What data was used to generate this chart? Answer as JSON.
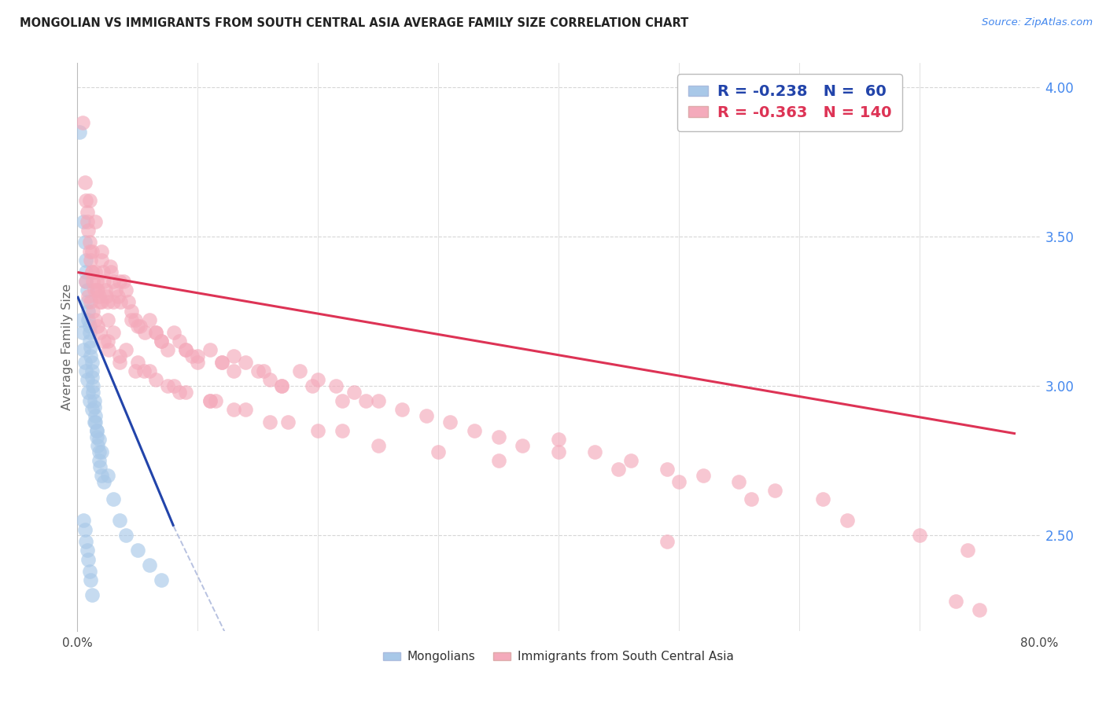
{
  "title": "MONGOLIAN VS IMMIGRANTS FROM SOUTH CENTRAL ASIA AVERAGE FAMILY SIZE CORRELATION CHART",
  "source": "Source: ZipAtlas.com",
  "ylabel": "Average Family Size",
  "xlim": [
    0.0,
    0.8
  ],
  "ylim": [
    2.18,
    4.08
  ],
  "right_yticks": [
    2.5,
    3.0,
    3.5,
    4.0
  ],
  "legend_label1": "Mongolians",
  "legend_label2": "Immigrants from South Central Asia",
  "blue_scatter_color": "#A8C8E8",
  "pink_scatter_color": "#F4AABB",
  "blue_line_color": "#2244AA",
  "pink_line_color": "#DD3355",
  "background_color": "#FFFFFF",
  "grid_color": "#CCCCCC",
  "title_color": "#222222",
  "right_axis_color": "#4488EE",
  "mongolian_R": -0.238,
  "mongolian_N": 60,
  "sca_R": -0.363,
  "sca_N": 140,
  "blue_reg": [
    0.0,
    3.3,
    0.08,
    2.53
  ],
  "blue_dash": [
    0.08,
    2.53,
    0.42,
    -0.3
  ],
  "pink_reg": [
    0.0,
    3.38,
    0.78,
    2.84
  ],
  "mongolian_x": [
    0.002,
    0.005,
    0.006,
    0.007,
    0.007,
    0.007,
    0.008,
    0.008,
    0.009,
    0.009,
    0.01,
    0.01,
    0.01,
    0.011,
    0.011,
    0.012,
    0.012,
    0.012,
    0.013,
    0.013,
    0.014,
    0.014,
    0.015,
    0.015,
    0.016,
    0.016,
    0.017,
    0.018,
    0.018,
    0.019,
    0.02,
    0.022,
    0.003,
    0.004,
    0.005,
    0.006,
    0.007,
    0.008,
    0.009,
    0.01,
    0.012,
    0.014,
    0.016,
    0.018,
    0.02,
    0.025,
    0.03,
    0.035,
    0.04,
    0.05,
    0.06,
    0.07,
    0.005,
    0.006,
    0.007,
    0.008,
    0.009,
    0.01,
    0.011,
    0.012
  ],
  "mongolian_y": [
    3.85,
    3.55,
    3.48,
    3.42,
    3.38,
    3.35,
    3.32,
    3.28,
    3.25,
    3.22,
    3.2,
    3.18,
    3.15,
    3.13,
    3.1,
    3.08,
    3.05,
    3.03,
    3.0,
    2.98,
    2.95,
    2.93,
    2.9,
    2.88,
    2.85,
    2.83,
    2.8,
    2.78,
    2.75,
    2.73,
    2.7,
    2.68,
    3.22,
    3.18,
    3.12,
    3.08,
    3.05,
    3.02,
    2.98,
    2.95,
    2.92,
    2.88,
    2.85,
    2.82,
    2.78,
    2.7,
    2.62,
    2.55,
    2.5,
    2.45,
    2.4,
    2.35,
    2.55,
    2.52,
    2.48,
    2.45,
    2.42,
    2.38,
    2.35,
    2.3
  ],
  "sca_x": [
    0.004,
    0.006,
    0.007,
    0.008,
    0.009,
    0.01,
    0.01,
    0.011,
    0.012,
    0.012,
    0.013,
    0.014,
    0.015,
    0.015,
    0.016,
    0.017,
    0.018,
    0.019,
    0.02,
    0.021,
    0.022,
    0.023,
    0.024,
    0.025,
    0.027,
    0.028,
    0.03,
    0.032,
    0.034,
    0.036,
    0.038,
    0.04,
    0.042,
    0.045,
    0.048,
    0.052,
    0.056,
    0.06,
    0.065,
    0.07,
    0.075,
    0.08,
    0.085,
    0.09,
    0.095,
    0.1,
    0.11,
    0.12,
    0.13,
    0.14,
    0.15,
    0.16,
    0.17,
    0.185,
    0.2,
    0.215,
    0.23,
    0.25,
    0.27,
    0.29,
    0.31,
    0.33,
    0.35,
    0.37,
    0.4,
    0.43,
    0.46,
    0.49,
    0.52,
    0.55,
    0.58,
    0.62,
    0.008,
    0.012,
    0.016,
    0.02,
    0.025,
    0.03,
    0.04,
    0.05,
    0.06,
    0.075,
    0.09,
    0.11,
    0.13,
    0.16,
    0.2,
    0.25,
    0.3,
    0.35,
    0.05,
    0.07,
    0.1,
    0.13,
    0.17,
    0.22,
    0.03,
    0.045,
    0.065,
    0.09,
    0.12,
    0.155,
    0.195,
    0.24,
    0.025,
    0.035,
    0.055,
    0.08,
    0.115,
    0.007,
    0.009,
    0.011,
    0.013,
    0.015,
    0.017,
    0.019,
    0.022,
    0.026,
    0.035,
    0.048,
    0.065,
    0.085,
    0.11,
    0.14,
    0.175,
    0.22,
    0.49,
    0.73,
    0.75,
    0.4,
    0.45,
    0.5,
    0.56,
    0.64,
    0.7,
    0.74,
    0.01,
    0.02,
    0.035
  ],
  "sca_y": [
    3.88,
    3.68,
    3.62,
    3.58,
    3.52,
    3.48,
    3.45,
    3.42,
    3.45,
    3.38,
    3.35,
    3.32,
    3.55,
    3.38,
    3.35,
    3.32,
    3.3,
    3.28,
    3.42,
    3.38,
    3.35,
    3.32,
    3.3,
    3.28,
    3.4,
    3.38,
    3.35,
    3.32,
    3.3,
    3.28,
    3.35,
    3.32,
    3.28,
    3.25,
    3.22,
    3.2,
    3.18,
    3.22,
    3.18,
    3.15,
    3.12,
    3.18,
    3.15,
    3.12,
    3.1,
    3.08,
    3.12,
    3.08,
    3.1,
    3.08,
    3.05,
    3.02,
    3.0,
    3.05,
    3.02,
    3.0,
    2.98,
    2.95,
    2.92,
    2.9,
    2.88,
    2.85,
    2.83,
    2.8,
    2.82,
    2.78,
    2.75,
    2.72,
    2.7,
    2.68,
    2.65,
    2.62,
    3.55,
    3.38,
    3.32,
    3.28,
    3.22,
    3.18,
    3.12,
    3.08,
    3.05,
    3.0,
    2.98,
    2.95,
    2.92,
    2.88,
    2.85,
    2.8,
    2.78,
    2.75,
    3.2,
    3.15,
    3.1,
    3.05,
    3.0,
    2.95,
    3.28,
    3.22,
    3.18,
    3.12,
    3.08,
    3.05,
    3.0,
    2.95,
    3.15,
    3.1,
    3.05,
    3.0,
    2.95,
    3.35,
    3.3,
    3.28,
    3.25,
    3.22,
    3.2,
    3.18,
    3.15,
    3.12,
    3.08,
    3.05,
    3.02,
    2.98,
    2.95,
    2.92,
    2.88,
    2.85,
    2.48,
    2.28,
    2.25,
    2.78,
    2.72,
    2.68,
    2.62,
    2.55,
    2.5,
    2.45,
    3.62,
    3.45,
    3.35
  ]
}
